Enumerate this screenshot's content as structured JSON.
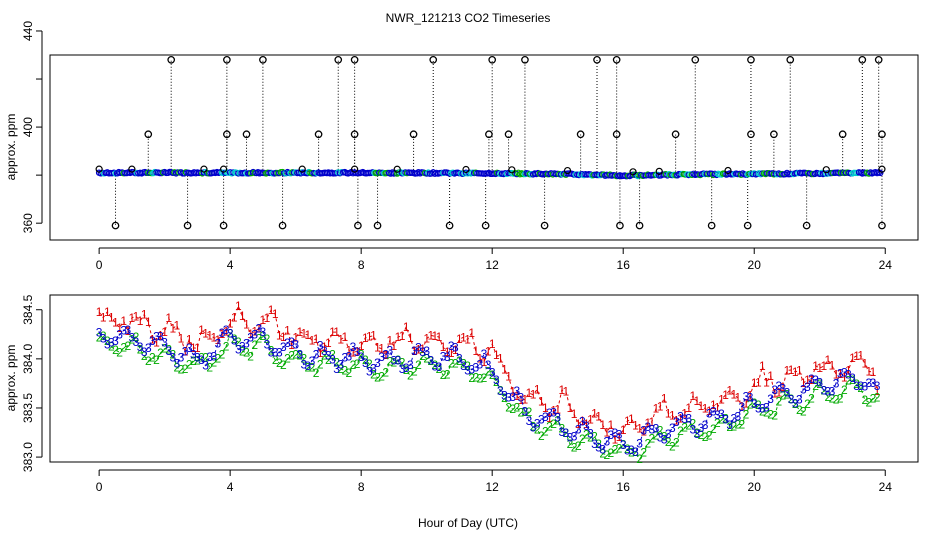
{
  "title": "NWR_121213  CO2 Timeseries",
  "xlabel": "Hour of Day (UTC)",
  "colors": {
    "red": "#dd0000",
    "green": "#00aa00",
    "blue": "#0000cc",
    "cyan": "#00cccc",
    "black": "#000000"
  },
  "chart_data": [
    {
      "type": "scatter",
      "panel": "top",
      "ylabel": "approx. ppm",
      "xlim": [
        -1.5,
        25
      ],
      "ylim": [
        353,
        430
      ],
      "xticks": [
        0,
        4,
        8,
        12,
        16,
        20,
        24
      ],
      "yticks": [
        360,
        400,
        440
      ],
      "yticks_minor": [
        380,
        420
      ],
      "baseline": [
        [
          0,
          381
        ],
        [
          4,
          381
        ],
        [
          8,
          381
        ],
        [
          12,
          380.8
        ],
        [
          14,
          380.5
        ],
        [
          16,
          379.8
        ],
        [
          18,
          380.3
        ],
        [
          20,
          380.5
        ],
        [
          24,
          381
        ]
      ],
      "spike_x_high": [
        2.2,
        3.9,
        5.0,
        7.3,
        7.8,
        10.2,
        12.0,
        13.0,
        15.2,
        15.8,
        18.2,
        19.9,
        21.1,
        23.3,
        23.8
      ],
      "spike_x_mid": [
        1.5,
        3.9,
        4.5,
        6.7,
        7.8,
        9.6,
        11.9,
        12.5,
        14.7,
        15.8,
        17.6,
        19.9,
        20.6,
        22.7,
        23.9
      ],
      "spike_x_low": [
        0.5,
        2.7,
        3.8,
        5.6,
        7.9,
        8.5,
        10.7,
        11.8,
        13.6,
        15.9,
        16.5,
        18.7,
        19.8,
        21.6,
        23.9
      ]
    },
    {
      "type": "scatter",
      "panel": "bottom",
      "ylabel": "approx. ppm",
      "xlim": [
        -1.5,
        25
      ],
      "ylim": [
        382.95,
        384.65
      ],
      "xticks": [
        0,
        4,
        8,
        12,
        16,
        20,
        24
      ],
      "yticks": [
        383.0,
        383.5,
        384.0,
        384.5
      ],
      "ytick_labels": [
        "383.0",
        "383.5",
        "384.0",
        "384.5"
      ],
      "series": [
        {
          "name": "1",
          "color": "#dd0000",
          "offset": 0.15
        },
        {
          "name": "2",
          "color": "#00aa00",
          "offset": -0.08
        },
        {
          "name": "3",
          "color": "#0000cc",
          "offset": 0
        }
      ],
      "trend": [
        [
          0,
          384.25
        ],
        [
          1,
          384.2
        ],
        [
          2,
          384.1
        ],
        [
          3,
          383.98
        ],
        [
          4,
          384.22
        ],
        [
          5,
          384.2
        ],
        [
          6,
          384.07
        ],
        [
          7,
          384.02
        ],
        [
          8,
          384.0
        ],
        [
          9,
          383.98
        ],
        [
          10,
          384.03
        ],
        [
          11,
          384.0
        ],
        [
          11.8,
          383.92
        ],
        [
          12.3,
          383.75
        ],
        [
          13,
          383.45
        ],
        [
          14,
          383.35
        ],
        [
          15,
          383.2
        ],
        [
          16,
          383.12
        ],
        [
          17,
          383.25
        ],
        [
          18,
          383.35
        ],
        [
          19,
          383.38
        ],
        [
          20,
          383.55
        ],
        [
          21,
          383.62
        ],
        [
          22,
          383.72
        ],
        [
          23,
          383.8
        ],
        [
          23.6,
          383.75
        ],
        [
          23.8,
          383.6
        ]
      ]
    }
  ]
}
